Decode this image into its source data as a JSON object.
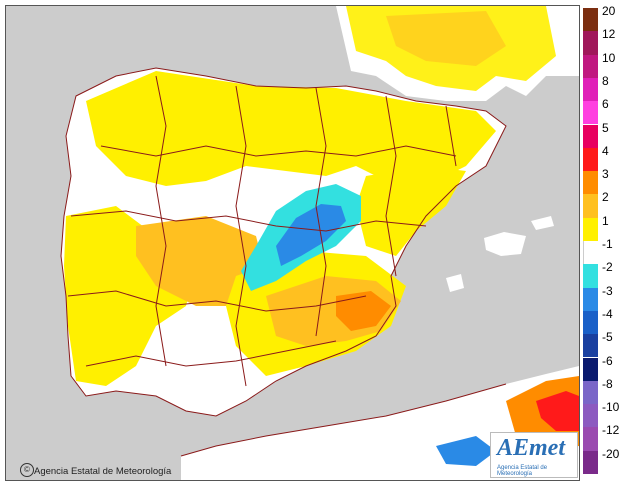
{
  "map": {
    "credit": "Agencia Estatal de Meteorología",
    "credit_symbol": "©",
    "logo_text": "AEmet",
    "logo_subtitle": "Agencia Estatal de Meteorología"
  },
  "legend": {
    "classes": [
      {
        "label": "20",
        "color": "#7b2e10"
      },
      {
        "label": "12",
        "color": "#a0185a"
      },
      {
        "label": "10",
        "color": "#c01880"
      },
      {
        "label": "8",
        "color": "#e020b8"
      },
      {
        "label": "6",
        "color": "#ff40e0"
      },
      {
        "label": "5",
        "color": "#e80060"
      },
      {
        "label": "4",
        "color": "#ff1a1a"
      },
      {
        "label": "3",
        "color": "#ff8c00"
      },
      {
        "label": "2",
        "color": "#ffc020"
      },
      {
        "label": "1",
        "color": "#fff000"
      },
      {
        "label": "-1",
        "color": "#ffffff"
      },
      {
        "label": "-2",
        "color": "#33e0e0"
      },
      {
        "label": "-3",
        "color": "#2a8ae6"
      },
      {
        "label": "-4",
        "color": "#1a60c8"
      },
      {
        "label": "-5",
        "color": "#1a40a0"
      },
      {
        "label": "-6",
        "color": "#0a1a6e"
      },
      {
        "label": "-8",
        "color": "#7a66c8"
      },
      {
        "label": "-10",
        "color": "#8c5ac0"
      },
      {
        "label": "-12",
        "color": "#9a4ab0"
      },
      {
        "label": "-20",
        "color": "#7a2a8a"
      }
    ]
  },
  "colors": {
    "sea": "#cccccc",
    "land_base": "#ffffff",
    "anomaly_1": "#fff000",
    "anomaly_2": "#ffc020",
    "anomaly_3": "#ff8c00",
    "anomaly_4": "#ff1a1a",
    "anomaly_m2": "#33e0e0",
    "anomaly_m3": "#2a8ae6",
    "borders": "#8a1a1a"
  }
}
